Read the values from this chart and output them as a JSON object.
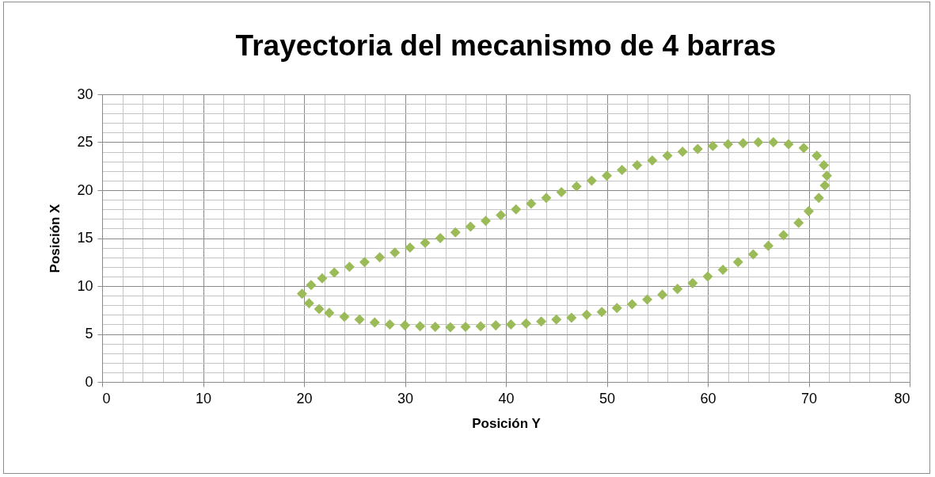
{
  "chart_data": {
    "type": "scatter",
    "title": "Trayectoria del mecanismo de 4 barras",
    "xlabel": "Posición Y",
    "ylabel": "Posición X",
    "marker": "diamond",
    "grid": true,
    "xlim": [
      0,
      80
    ],
    "ylim": [
      0,
      30
    ],
    "xticks": [
      0,
      {
        "value": 2,
        "label": null
      },
      {
        "value": 4,
        "label": null
      },
      {
        "value": 6,
        "label": null
      },
      {
        "value": 8,
        "label": null
      },
      10,
      {
        "value": 12,
        "label": null
      },
      {
        "value": 14,
        "label": null
      },
      {
        "value": 16,
        "label": null
      },
      {
        "value": 18,
        "label": null
      },
      20,
      {
        "value": 22,
        "label": null
      },
      {
        "value": 24,
        "label": null
      },
      {
        "value": 26,
        "label": null
      },
      {
        "value": 28,
        "label": null
      },
      30,
      {
        "value": 32,
        "label": null
      },
      {
        "value": 34,
        "label": null
      },
      {
        "value": 36,
        "label": null
      },
      {
        "value": 38,
        "label": null
      },
      40,
      {
        "value": 42,
        "label": null
      },
      {
        "value": 44,
        "label": null
      },
      {
        "value": 46,
        "label": null
      },
      {
        "value": 48,
        "label": null
      },
      50,
      {
        "value": 52,
        "label": null
      },
      {
        "value": 54,
        "label": null
      },
      {
        "value": 56,
        "label": null
      },
      {
        "value": 58,
        "label": null
      },
      60,
      {
        "value": 62,
        "label": null
      },
      {
        "value": 64,
        "label": null
      },
      {
        "value": 66,
        "label": null
      },
      {
        "value": 68,
        "label": null
      },
      70,
      {
        "value": 72,
        "label": null
      },
      {
        "value": 74,
        "label": null
      },
      {
        "value": 76,
        "label": null
      },
      {
        "value": 78,
        "label": null
      },
      80
    ],
    "yticks": [
      0,
      {
        "value": 1,
        "label": null
      },
      {
        "value": 2,
        "label": null
      },
      {
        "value": 3,
        "label": null
      },
      {
        "value": 4,
        "label": null
      },
      5,
      {
        "value": 6,
        "label": null
      },
      {
        "value": 7,
        "label": null
      },
      {
        "value": 8,
        "label": null
      },
      {
        "value": 9,
        "label": null
      },
      10,
      {
        "value": 11,
        "label": null
      },
      {
        "value": 12,
        "label": null
      },
      {
        "value": 13,
        "label": null
      },
      {
        "value": 14,
        "label": null
      },
      15,
      {
        "value": 16,
        "label": null
      },
      {
        "value": 17,
        "label": null
      },
      {
        "value": 18,
        "label": null
      },
      {
        "value": 19,
        "label": null
      },
      20,
      {
        "value": 21,
        "label": null
      },
      {
        "value": 22,
        "label": null
      },
      {
        "value": 23,
        "label": null
      },
      {
        "value": 24,
        "label": null
      },
      25,
      {
        "value": 26,
        "label": null
      },
      {
        "value": 27,
        "label": null
      },
      {
        "value": 28,
        "label": null
      },
      {
        "value": 29,
        "label": null
      },
      30
    ],
    "series": [
      {
        "color": "#9bbb59",
        "x": [
          19.8,
          20.5,
          21.5,
          22.5,
          24,
          25.5,
          27,
          28.5,
          30,
          31.5,
          33,
          34.5,
          36,
          37.5,
          39,
          40.5,
          42,
          43.5,
          45,
          46.5,
          48,
          49.5,
          51,
          52.5,
          54,
          55.5,
          57,
          58.5,
          60,
          61.5,
          63,
          64.5,
          66,
          67.5,
          69,
          70,
          71,
          71.6,
          71.8,
          71.5,
          70.8,
          69.5,
          68,
          66.5,
          65,
          63.5,
          62,
          60.5,
          59,
          57.5,
          56,
          54.5,
          53,
          51.5,
          50,
          48.5,
          47,
          45.5,
          44,
          42.5,
          41,
          39.5,
          38,
          36.5,
          35,
          33.5,
          32,
          30.5,
          29,
          27.5,
          26,
          24.5,
          23,
          21.8,
          20.7
        ],
        "values": [
          9.2,
          8.2,
          7.6,
          7.2,
          6.8,
          6.5,
          6.2,
          6.0,
          5.9,
          5.8,
          5.75,
          5.7,
          5.75,
          5.8,
          5.9,
          6.0,
          6.1,
          6.3,
          6.5,
          6.7,
          7.0,
          7.3,
          7.7,
          8.1,
          8.6,
          9.1,
          9.7,
          10.3,
          11.0,
          11.7,
          12.5,
          13.3,
          14.2,
          15.3,
          16.6,
          17.8,
          19.2,
          20.5,
          21.5,
          22.6,
          23.6,
          24.4,
          24.8,
          25.0,
          25.0,
          24.9,
          24.8,
          24.6,
          24.3,
          24.0,
          23.6,
          23.1,
          22.6,
          22.1,
          21.5,
          21.0,
          20.4,
          19.8,
          19.2,
          18.6,
          18.0,
          17.4,
          16.8,
          16.2,
          15.6,
          15.0,
          14.5,
          14.0,
          13.5,
          13.0,
          12.5,
          12.0,
          11.4,
          10.8,
          10.1
        ]
      }
    ]
  }
}
